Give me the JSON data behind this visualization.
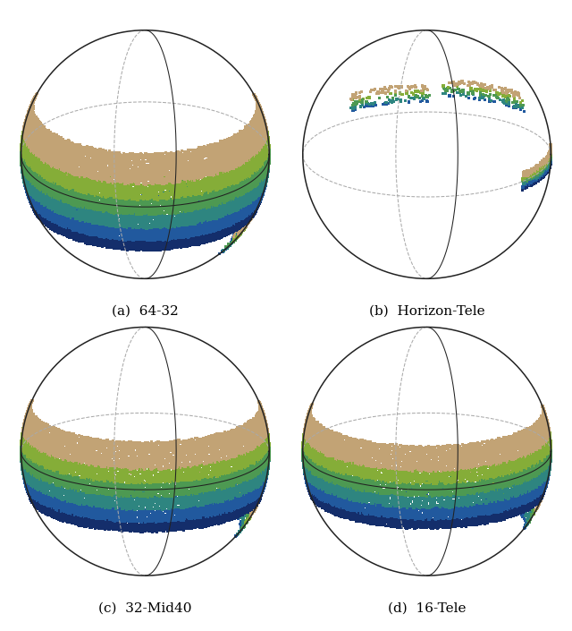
{
  "subplots": [
    {
      "label": "(a)  64-32"
    },
    {
      "label": "(b)  Horizon-Tele"
    },
    {
      "label": "(c)  32-Mid40"
    },
    {
      "label": "(d)  16-Tele"
    }
  ],
  "colors": {
    "deep_blue": [
      0.08,
      0.18,
      0.42
    ],
    "mid_blue": [
      0.13,
      0.35,
      0.62
    ],
    "teal": [
      0.18,
      0.52,
      0.5
    ],
    "green": [
      0.3,
      0.6,
      0.32
    ],
    "yellow_green": [
      0.52,
      0.68,
      0.22
    ],
    "tan": [
      0.76,
      0.64,
      0.46
    ],
    "light_tan": [
      0.84,
      0.74,
      0.6
    ],
    "white_patch": [
      0.92,
      0.88,
      0.82
    ],
    "sphere_line": "#222222",
    "dashed_line": "#aaaaaa",
    "background": "#ffffff"
  },
  "figsize": [
    6.4,
    7.05
  ],
  "dpi": 100
}
